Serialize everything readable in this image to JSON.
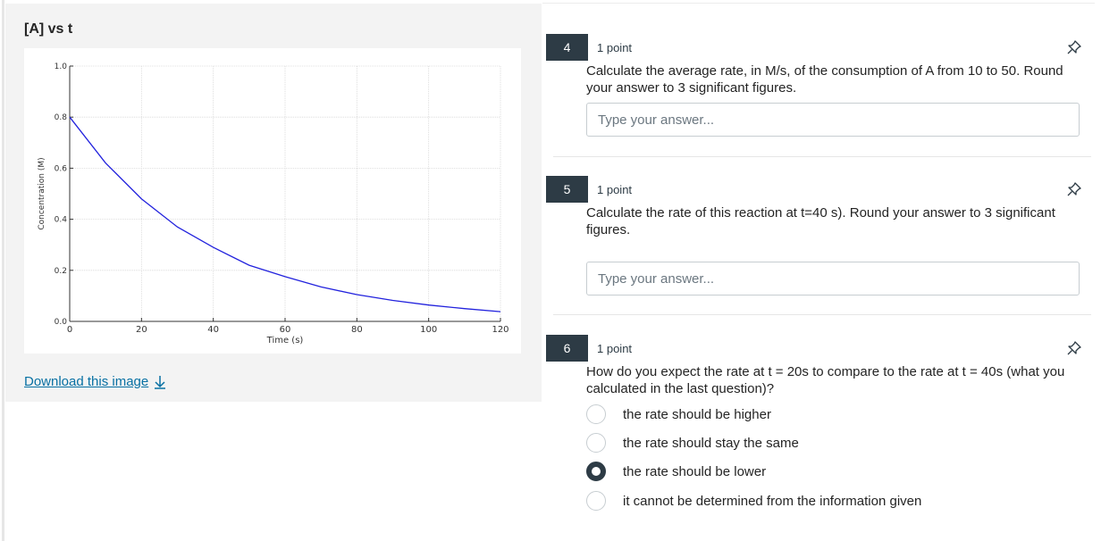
{
  "left_panel": {
    "title": "[A] vs t",
    "download_label": "Download this image"
  },
  "chart_data": {
    "type": "line",
    "title": "",
    "xlabel": "Time (s)",
    "ylabel": "Concentration (M)",
    "xlim": [
      0,
      120
    ],
    "ylim": [
      0.0,
      1.0
    ],
    "xticks": [
      "0",
      "20",
      "40",
      "60",
      "80",
      "100",
      "120"
    ],
    "yticks": [
      "0.0",
      "0.2",
      "0.4",
      "0.6",
      "0.8",
      "1.0"
    ],
    "grid": true,
    "series": [
      {
        "color": "#2222dd",
        "x": [
          0,
          10,
          20,
          30,
          40,
          50,
          60,
          70,
          80,
          90,
          100,
          110,
          120
        ],
        "y": [
          0.8,
          0.62,
          0.48,
          0.37,
          0.29,
          0.22,
          0.175,
          0.135,
          0.105,
          0.082,
          0.064,
          0.05,
          0.038
        ]
      }
    ]
  },
  "questions": [
    {
      "number": "4",
      "points": "1 point",
      "text": "Calculate the average rate, in M/s, of the consumption of A from 10 to 50. Round your answer to 3 significant figures.",
      "placeholder": "Type your answer..."
    },
    {
      "number": "5",
      "points": "1 point",
      "text": "Calculate the rate of this reaction at t=40 s). Round your answer to 3 significant figures.",
      "placeholder": "Type your answer..."
    },
    {
      "number": "6",
      "points": "1 point",
      "text": "How do you expect the rate at t = 20s to compare to the rate at t = 40s (what you calculated in the last question)?",
      "options": [
        "the rate should be higher",
        "the rate should stay the same",
        "the rate should be lower",
        "it cannot be determined from the information given"
      ],
      "selected_option": "the rate should be lower"
    }
  ],
  "colors": {
    "accent": "#2d3b45",
    "link": "#0770a3",
    "series": "#2222dd"
  },
  "icons": {
    "pin": "pin-icon",
    "download": "download-arrow-icon"
  }
}
